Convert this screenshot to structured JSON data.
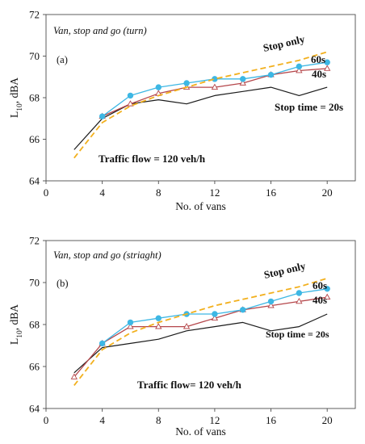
{
  "chart_data": [
    {
      "type": "line",
      "title": "Van, stop and go (turn)",
      "panel_label": "(a)",
      "xlabel": "No. of vans",
      "ylabel_main": "L",
      "ylabel_sub": "10",
      "ylabel_rest": ", dBA",
      "xlim": [
        0,
        22
      ],
      "ylim": [
        64,
        72
      ],
      "xticks": [
        "0",
        "4",
        "8",
        "12",
        "16",
        "20"
      ],
      "yticks": [
        "64",
        "66",
        "68",
        "70",
        "72"
      ],
      "annotations": {
        "flow": "Traffic flow = 120 veh/h",
        "stop_only": "Stop only",
        "label_60s": "60s",
        "label_40s": "40s",
        "label_20s": "Stop time = 20s"
      },
      "series": [
        {
          "key": "stop_only",
          "color": "#F2B01E",
          "x": [
            2,
            4,
            6,
            8,
            10,
            12,
            14,
            16,
            18,
            20
          ],
          "y": [
            65.1,
            66.8,
            67.6,
            68.1,
            68.5,
            68.9,
            69.2,
            69.5,
            69.8,
            70.2
          ]
        },
        {
          "key": "60s",
          "color": "#3DB7E4",
          "x": [
            4,
            6,
            8,
            10,
            12,
            14,
            16,
            18,
            20
          ],
          "y": [
            67.1,
            68.1,
            68.5,
            68.7,
            68.9,
            68.9,
            69.1,
            69.5,
            69.7
          ]
        },
        {
          "key": "40s",
          "color": "#B5474B",
          "x": [
            4,
            6,
            8,
            10,
            12,
            14,
            16,
            18,
            20
          ],
          "y": [
            67.1,
            67.7,
            68.2,
            68.5,
            68.5,
            68.7,
            69.1,
            69.3,
            69.4
          ]
        },
        {
          "key": "20s",
          "color": "#1A1A1A",
          "x": [
            2,
            4,
            6,
            8,
            10,
            12,
            14,
            16,
            18,
            20
          ],
          "y": [
            65.5,
            67.0,
            67.7,
            67.9,
            67.7,
            68.1,
            68.3,
            68.5,
            68.1,
            68.5
          ]
        }
      ]
    },
    {
      "type": "line",
      "title": "Van, stop and go (striaght)",
      "panel_label": "(b)",
      "xlabel": "No. of vans",
      "ylabel_main": "L",
      "ylabel_sub": "10",
      "ylabel_rest": ", dBA",
      "xlim": [
        0,
        22
      ],
      "ylim": [
        64,
        72
      ],
      "xticks": [
        "0",
        "4",
        "8",
        "12",
        "16",
        "20"
      ],
      "yticks": [
        "64",
        "66",
        "68",
        "70",
        "72"
      ],
      "annotations": {
        "flow": "Traffic flow= 120 veh/h",
        "stop_only": "Stop only",
        "label_60s": "60s",
        "label_40s": "40s",
        "label_20s": "Stop time = 20s"
      },
      "series": [
        {
          "key": "stop_only",
          "color": "#F2B01E",
          "x": [
            2,
            4,
            6,
            8,
            10,
            12,
            14,
            16,
            18,
            20
          ],
          "y": [
            65.1,
            66.8,
            67.6,
            68.1,
            68.5,
            68.9,
            69.2,
            69.5,
            69.8,
            70.2
          ]
        },
        {
          "key": "60s",
          "color": "#3DB7E4",
          "x": [
            4,
            6,
            8,
            10,
            12,
            14,
            16,
            18,
            20
          ],
          "y": [
            67.1,
            68.1,
            68.3,
            68.5,
            68.5,
            68.7,
            69.1,
            69.5,
            69.7
          ]
        },
        {
          "key": "40s",
          "color": "#B5474B",
          "x": [
            2,
            4,
            6,
            8,
            10,
            12,
            14,
            16,
            18,
            20
          ],
          "y": [
            65.5,
            67.1,
            67.9,
            67.9,
            67.9,
            68.3,
            68.7,
            68.9,
            69.1,
            69.3
          ]
        },
        {
          "key": "20s",
          "color": "#1A1A1A",
          "x": [
            2,
            4,
            6,
            8,
            10,
            12,
            14,
            16,
            18,
            20
          ],
          "y": [
            65.7,
            66.9,
            67.1,
            67.3,
            67.7,
            67.9,
            68.1,
            67.7,
            67.9,
            68.5
          ]
        }
      ]
    }
  ]
}
